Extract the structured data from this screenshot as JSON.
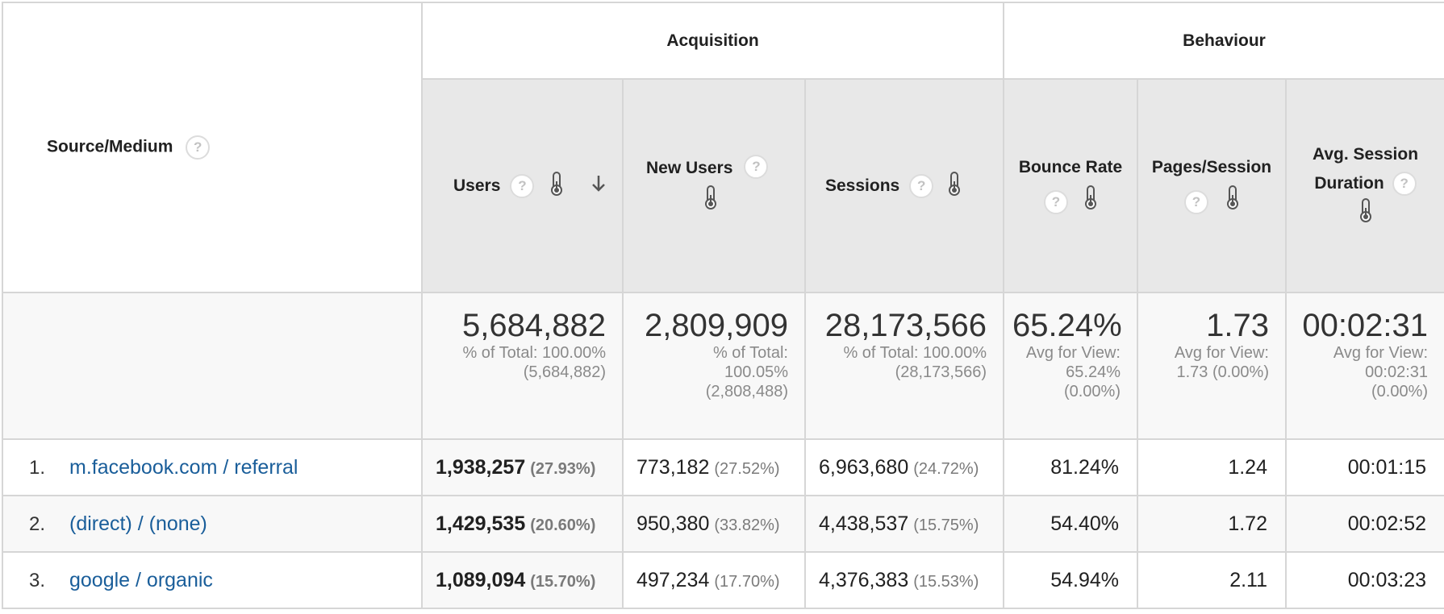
{
  "header": {
    "source_label": "Source/Medium",
    "acquisition_label": "Acquisition",
    "behaviour_label": "Behaviour",
    "help_glyph": "?",
    "columns": {
      "users": "Users",
      "new_users": "New Users",
      "sessions": "Sessions",
      "bounce_rate": "Bounce Rate",
      "pages_session": "Pages/Session",
      "avg_session_line1": "Avg. Session",
      "avg_session_line2": "Duration"
    }
  },
  "summary": {
    "users": {
      "value": "5,684,882",
      "line1": "% of Total: 100.00%",
      "line2": "(5,684,882)"
    },
    "new_users": {
      "value": "2,809,909",
      "line1": "% of Total:",
      "line2": "100.05%",
      "line3": "(2,808,488)"
    },
    "sessions": {
      "value": "28,173,566",
      "line1": "% of Total: 100.00%",
      "line2": "(28,173,566)"
    },
    "bounce_rate": {
      "value": "65.24%",
      "line1": "Avg for View:",
      "line2": "65.24%",
      "line3": "(0.00%)"
    },
    "pages_session": {
      "value": "1.73",
      "line1": "Avg for View:",
      "line2": "1.73 (0.00%)"
    },
    "avg_duration": {
      "value": "00:02:31",
      "line1": "Avg for View:",
      "line2": "00:02:31",
      "line3": "(0.00%)"
    }
  },
  "rows": [
    {
      "index": "1.",
      "source": "m.facebook.com / referral",
      "users": "1,938,257",
      "users_pct": "(27.93%)",
      "new_users": "773,182",
      "new_users_pct": "(27.52%)",
      "sessions": "6,963,680",
      "sessions_pct": "(24.72%)",
      "bounce_rate": "81.24%",
      "pages_session": "1.24",
      "avg_duration": "00:01:15"
    },
    {
      "index": "2.",
      "source": "(direct) / (none)",
      "users": "1,429,535",
      "users_pct": "(20.60%)",
      "new_users": "950,380",
      "new_users_pct": "(33.82%)",
      "sessions": "4,438,537",
      "sessions_pct": "(15.75%)",
      "bounce_rate": "54.40%",
      "pages_session": "1.72",
      "avg_duration": "00:02:52"
    },
    {
      "index": "3.",
      "source": "google / organic",
      "users": "1,089,094",
      "users_pct": "(15.70%)",
      "new_users": "497,234",
      "new_users_pct": "(17.70%)",
      "sessions": "4,376,383",
      "sessions_pct": "(15.53%)",
      "bounce_rate": "54.94%",
      "pages_session": "2.11",
      "avg_duration": "00:03:23"
    }
  ],
  "icons": {
    "help": "question-circle-icon",
    "comparison": "thermometer-icon",
    "sort": "arrow-down-icon"
  },
  "colors": {
    "link": "#1a5e9a",
    "header_bg": "#e8e8e8",
    "border": "#d6d6d6"
  }
}
